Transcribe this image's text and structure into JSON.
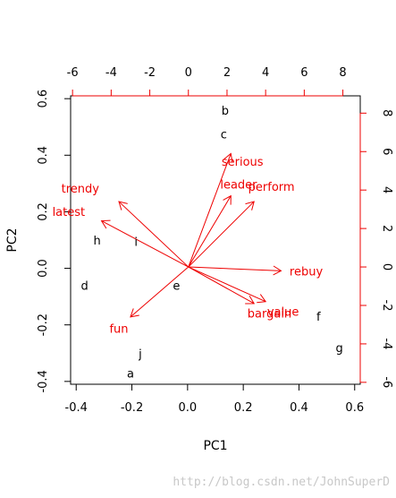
{
  "chart_data": {
    "type": "scatter",
    "title": "",
    "xlabel": "PC1",
    "ylabel": "PC2",
    "xlim": [
      -0.42,
      0.62
    ],
    "ylim": [
      -0.41,
      0.61
    ],
    "xticks": [
      -0.4,
      -0.2,
      0.0,
      0.2,
      0.4,
      0.6
    ],
    "yticks": [
      -0.4,
      -0.2,
      0.0,
      0.2,
      0.4,
      0.6
    ],
    "secondary_axes": {
      "top_ticks": [
        -6,
        -4,
        -2,
        0,
        2,
        4,
        6,
        8
      ],
      "right_ticks": [
        -6,
        -4,
        -2,
        0,
        2,
        4,
        6,
        8
      ],
      "xlim": [
        -6.1,
        8.9
      ],
      "ylim": [
        -6.1,
        8.9
      ]
    },
    "observations": [
      {
        "label": "a",
        "x": -0.205,
        "y": -0.37
      },
      {
        "label": "b",
        "x": 0.135,
        "y": 0.56
      },
      {
        "label": "c",
        "x": 0.13,
        "y": 0.475
      },
      {
        "label": "d",
        "x": -0.37,
        "y": -0.06
      },
      {
        "label": "e",
        "x": -0.04,
        "y": -0.06
      },
      {
        "label": "f",
        "x": 0.47,
        "y": -0.17
      },
      {
        "label": "g",
        "x": 0.545,
        "y": -0.28
      },
      {
        "label": "h",
        "x": -0.325,
        "y": 0.1
      },
      {
        "label": "i",
        "x": -0.185,
        "y": 0.095
      },
      {
        "label": "j",
        "x": -0.17,
        "y": -0.3
      }
    ],
    "loadings": [
      {
        "name": "trendy",
        "x": -3.6,
        "y": 3.4,
        "label_x": -5.6,
        "label_y": 4.1
      },
      {
        "name": "latest",
        "x": -4.5,
        "y": 2.4,
        "label_x": -6.2,
        "label_y": 2.9
      },
      {
        "name": "fun",
        "x": -3.0,
        "y": -2.6,
        "label_x": -3.6,
        "label_y": -3.2
      },
      {
        "name": "serious",
        "x": 2.2,
        "y": 5.9,
        "label_x": 2.8,
        "label_y": 5.5
      },
      {
        "name": "leader",
        "x": 2.2,
        "y": 3.7,
        "label_x": 2.6,
        "label_y": 4.3
      },
      {
        "name": "perform",
        "x": 3.4,
        "y": 3.4,
        "label_x": 4.3,
        "label_y": 4.2
      },
      {
        "name": "rebuy",
        "x": 4.8,
        "y": -0.2,
        "label_x": 6.1,
        "label_y": -0.2
      },
      {
        "name": "value",
        "x": 4.0,
        "y": -1.8,
        "label_x": 4.9,
        "label_y": -2.3
      },
      {
        "name": "bargain",
        "x": 3.4,
        "y": -1.9,
        "label_x": 4.2,
        "label_y": -2.4
      }
    ],
    "colors": {
      "points": "#000000",
      "loadings": "#ee0000"
    },
    "grid": false,
    "legend": "none"
  },
  "watermark": "http://blog.csdn.net/JohnSuperD"
}
